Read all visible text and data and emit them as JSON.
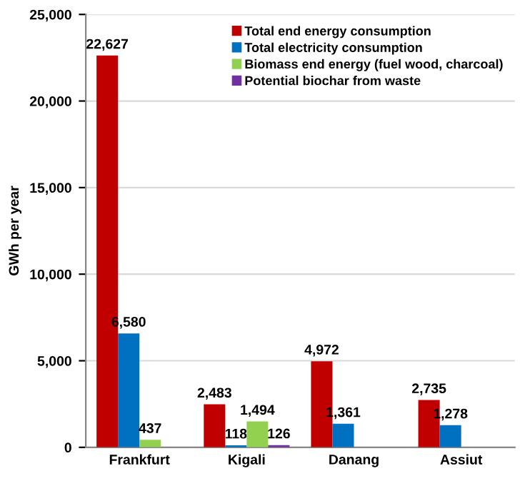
{
  "chart_data": {
    "type": "bar",
    "ylabel": "GWh per year",
    "categories": [
      "Frankfurt",
      "Kigali",
      "Danang",
      "Assiut"
    ],
    "series": [
      {
        "name": "Total end energy consumption",
        "color": "#c00000",
        "values": [
          22627,
          2483,
          4972,
          2735
        ],
        "value_labels": [
          "22,627",
          "2,483",
          "4,972",
          "2,735"
        ]
      },
      {
        "name": "Total electricity consumption",
        "color": "#0070c0",
        "values": [
          6580,
          118,
          1361,
          1278
        ],
        "value_labels": [
          "6,580",
          "118",
          "1,361",
          "1,278"
        ]
      },
      {
        "name": "Biomass end energy (fuel wood, charcoal)",
        "color": "#92d050",
        "values": [
          437,
          1494,
          null,
          null
        ],
        "value_labels": [
          "437",
          "1,494",
          null,
          null
        ]
      },
      {
        "name": "Potential biochar from waste",
        "color": "#7030a0",
        "values": [
          null,
          126,
          null,
          null
        ],
        "value_labels": [
          null,
          "126",
          null,
          null
        ]
      }
    ],
    "ylim": [
      0,
      25000
    ],
    "yticks": [
      {
        "value": 0,
        "label": "0"
      },
      {
        "value": 5000,
        "label": "5,000"
      },
      {
        "value": 10000,
        "label": "10,000"
      },
      {
        "value": 15000,
        "label": "15,000"
      },
      {
        "value": 20000,
        "label": "20,000"
      },
      {
        "value": 25000,
        "label": "25,000"
      }
    ],
    "grid": "y",
    "legend": "top right"
  }
}
